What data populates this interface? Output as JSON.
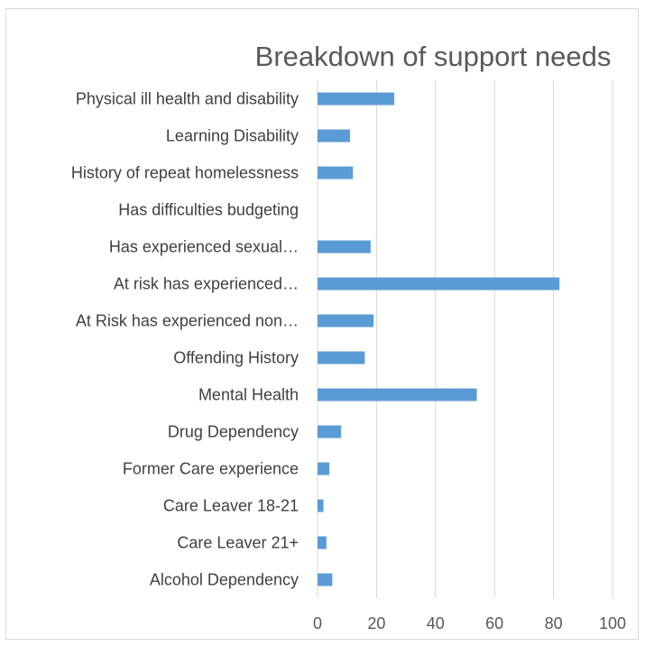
{
  "chart_data": {
    "type": "bar",
    "orientation": "horizontal",
    "title": "Breakdown of support needs",
    "xlabel": "",
    "ylabel": "",
    "categories": [
      "Physical ill health and disability",
      "Learning Disability",
      "History of repeat homelessness",
      "Has difficulties budgeting",
      "Has experienced sexual…",
      "At risk has experienced…",
      "At Risk has experienced non…",
      "Offending History",
      "Mental Health",
      "Drug Dependency",
      "Former Care experience",
      "Care Leaver 18-21",
      "Care Leaver 21+",
      "Alcohol Dependency"
    ],
    "values": [
      26,
      11,
      12,
      0,
      18,
      82,
      19,
      16,
      54,
      8,
      4,
      2,
      3,
      5
    ],
    "xlim": [
      0,
      100
    ],
    "xticks": [
      "0",
      "20",
      "40",
      "60",
      "80",
      "100"
    ],
    "grid": true,
    "legend": "none",
    "bar_color": "#5b9bd5"
  }
}
